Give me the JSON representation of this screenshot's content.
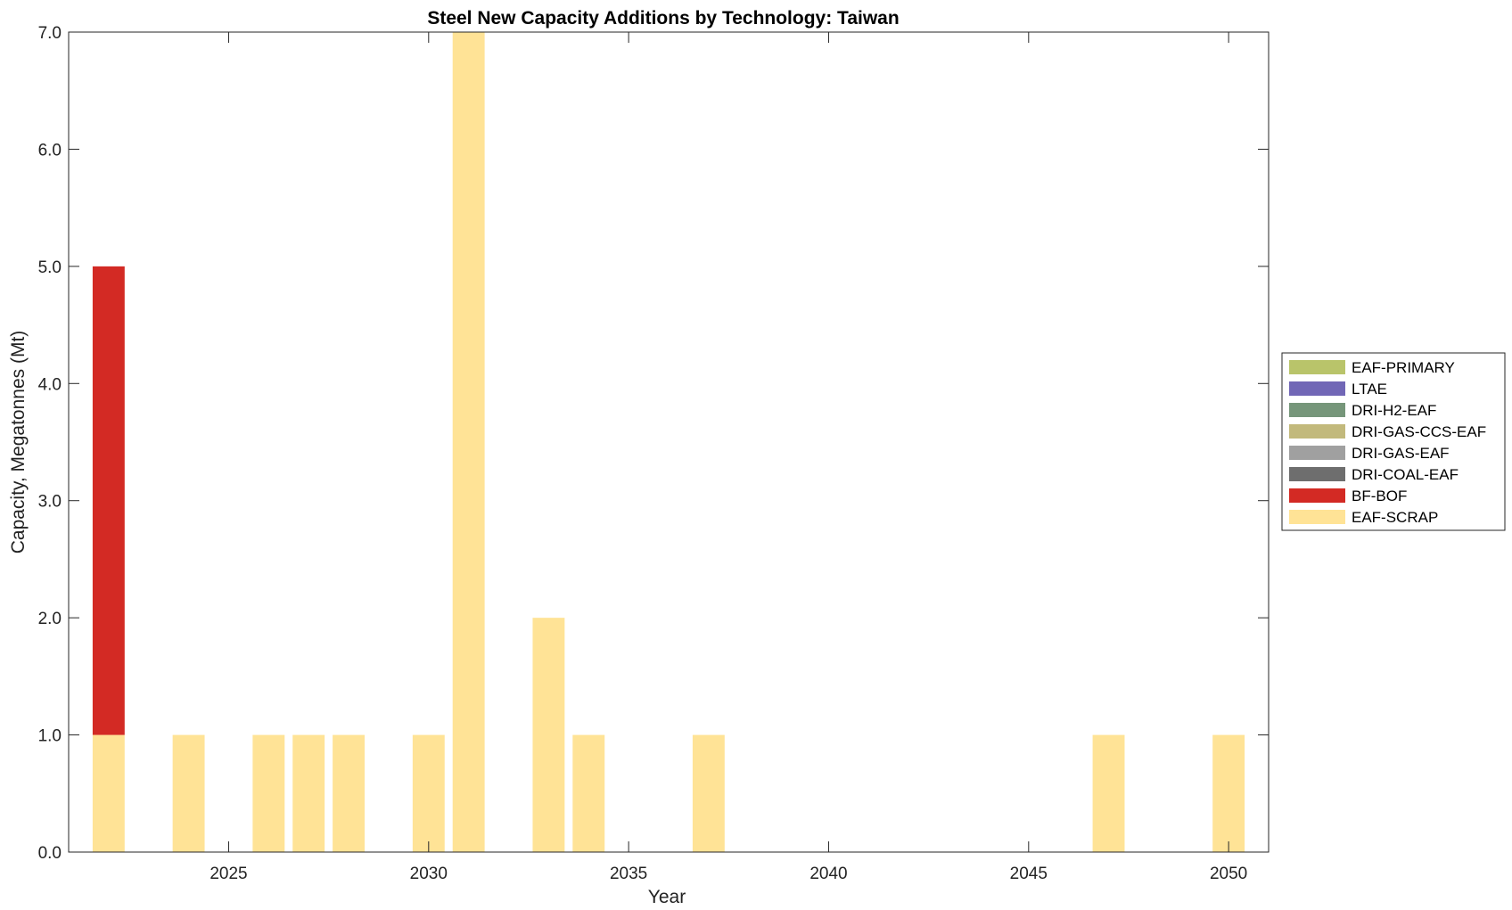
{
  "chart_data": {
    "type": "bar",
    "stacked": true,
    "title": "Steel New Capacity Additions by Technology: Taiwan",
    "xlabel": "Year",
    "ylabel": "Capacity, Megatonnes (Mt)",
    "xlim": [
      2021,
      2051
    ],
    "ylim": [
      0,
      7
    ],
    "x_ticks": [
      2025,
      2030,
      2035,
      2040,
      2045,
      2050
    ],
    "x_tick_labels": [
      "2025",
      "2030",
      "2035",
      "2040",
      "2045",
      "2050"
    ],
    "y_ticks": [
      0,
      1,
      2,
      3,
      4,
      5,
      6,
      7
    ],
    "y_tick_labels": [
      "0.0",
      "1.0",
      "2.0",
      "3.0",
      "4.0",
      "5.0",
      "6.0",
      "7.0"
    ],
    "grid": false,
    "legend_position": "right",
    "x": [
      2022,
      2024,
      2026,
      2027,
      2028,
      2030,
      2031,
      2033,
      2034,
      2037,
      2047,
      2050
    ],
    "series": [
      {
        "name": "EAF-SCRAP",
        "color": "#FFE396",
        "values": [
          1,
          1,
          1,
          1,
          1,
          1,
          7,
          2,
          1,
          1,
          1,
          1
        ]
      },
      {
        "name": "BF-BOF",
        "color": "#D32A24",
        "values": [
          4,
          0,
          0,
          0,
          0,
          0,
          0,
          0,
          0,
          0,
          0,
          0
        ]
      },
      {
        "name": "DRI-COAL-EAF",
        "color": "#6E6E6E",
        "values": [
          0,
          0,
          0,
          0,
          0,
          0,
          0,
          0,
          0,
          0,
          0,
          0
        ]
      },
      {
        "name": "DRI-GAS-EAF",
        "color": "#A0A0A0",
        "values": [
          0,
          0,
          0,
          0,
          0,
          0,
          0,
          0,
          0,
          0,
          0,
          0
        ]
      },
      {
        "name": "DRI-GAS-CCS-EAF",
        "color": "#C2B97C",
        "values": [
          0,
          0,
          0,
          0,
          0,
          0,
          0,
          0,
          0,
          0,
          0,
          0
        ]
      },
      {
        "name": "DRI-H2-EAF",
        "color": "#76967A",
        "values": [
          0,
          0,
          0,
          0,
          0,
          0,
          0,
          0,
          0,
          0,
          0,
          0
        ]
      },
      {
        "name": "LTAE",
        "color": "#7167B6",
        "values": [
          0,
          0,
          0,
          0,
          0,
          0,
          0,
          0,
          0,
          0,
          0,
          0
        ]
      },
      {
        "name": "EAF-PRIMARY",
        "color": "#B9C46A",
        "values": [
          0,
          0,
          0,
          0,
          0,
          0,
          0,
          0,
          0,
          0,
          0,
          0
        ]
      }
    ],
    "legend_order": [
      "EAF-PRIMARY",
      "LTAE",
      "DRI-H2-EAF",
      "DRI-GAS-CCS-EAF",
      "DRI-GAS-EAF",
      "DRI-COAL-EAF",
      "BF-BOF",
      "EAF-SCRAP"
    ]
  }
}
